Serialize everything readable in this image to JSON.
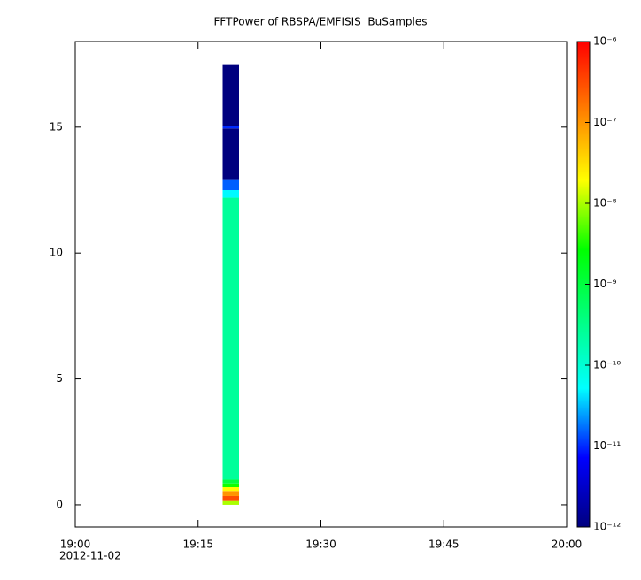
{
  "chart_data": {
    "type": "spectrogram",
    "title": "FFTPower of RBSPA/EMFISIS  BuSamples",
    "xlim": [
      "2012-11-02T19:00",
      "2012-11-02T20:00"
    ],
    "xticks": [
      {
        "value": "2012-11-02T19:00",
        "label": "19:00"
      },
      {
        "value": "2012-11-02T19:15",
        "label": "19:15"
      },
      {
        "value": "2012-11-02T19:30",
        "label": "19:30"
      },
      {
        "value": "2012-11-02T19:45",
        "label": "19:45"
      },
      {
        "value": "2012-11-02T20:00",
        "label": "20:00"
      }
    ],
    "x_date_label": "2012-11-02",
    "ylim": [
      -0.88,
      18.4
    ],
    "yticks": [
      0,
      5,
      10,
      15
    ],
    "time_range": [
      "2012-11-02T19:18",
      "2012-11-02T19:20"
    ],
    "freq_bins": [
      0,
      0.15,
      0.35,
      0.55,
      0.7,
      0.85,
      1.0,
      12.2,
      12.5,
      12.9,
      14.95,
      15.05,
      17.5
    ],
    "values": [
      1e-08,
      3e-07,
      1e-07,
      2e-08,
      3e-09,
      1e-09,
      2.5e-10,
      5e-11,
      1.5e-11,
      1e-12,
      1e-11,
      1e-12
    ],
    "log_color_scale": true,
    "clim": [
      1e-12,
      1e-06
    ],
    "cticks": [
      {
        "value": 1e-12,
        "label": "10⁻¹²"
      },
      {
        "value": 1e-11,
        "label": "10⁻¹¹"
      },
      {
        "value": 1e-10,
        "label": "10⁻¹⁰"
      },
      {
        "value": 1e-09,
        "label": "10⁻⁹"
      },
      {
        "value": 1e-08,
        "label": "10⁻⁸"
      },
      {
        "value": 1e-07,
        "label": "10⁻⁷"
      },
      {
        "value": 1e-06,
        "label": "10⁻⁶"
      }
    ],
    "colormap": [
      "#00007f",
      "#0000ff",
      "#00ffff",
      "#00ff80",
      "#00ff00",
      "#ffff00",
      "#ff8000",
      "#ff0000"
    ]
  }
}
